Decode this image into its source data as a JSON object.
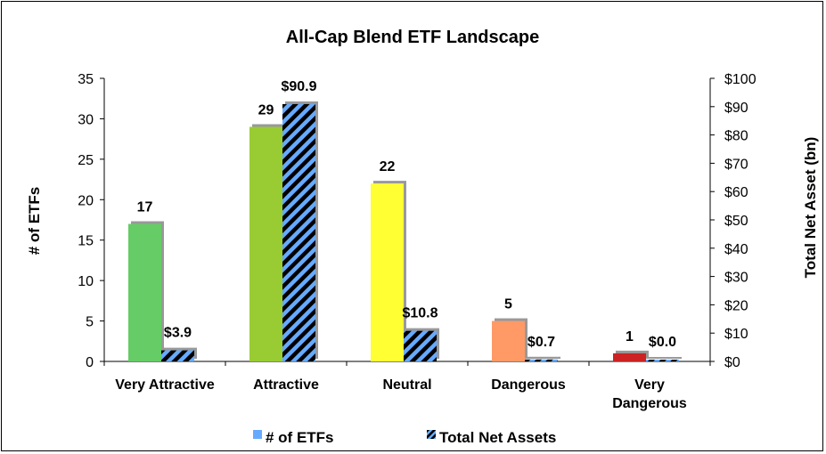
{
  "chart_data": {
    "type": "bar",
    "title": "All-Cap Blend ETF Landscape",
    "categories": [
      "Very Attractive",
      "Attractive",
      "Neutral",
      "Dangerous",
      "Very Dangerous"
    ],
    "series": [
      {
        "name": "# of ETFs",
        "axis": "left",
        "values": [
          17,
          29,
          22,
          5,
          1
        ],
        "labels": [
          "17",
          "29",
          "22",
          "5",
          "1"
        ],
        "colors": [
          "#66cc66",
          "#99cc33",
          "#ffff33",
          "#ff9966",
          "#cc2222"
        ],
        "legend_color": "#66aaff"
      },
      {
        "name": "Total Net Assets",
        "axis": "right",
        "values": [
          3.9,
          90.9,
          10.8,
          0.7,
          0.0
        ],
        "labels": [
          "$3.9",
          "$90.9",
          "$10.8",
          "$0.7",
          "$0.0"
        ],
        "pattern": "diagonal-stripes",
        "stripe_colors": [
          "#66aaff",
          "#000000"
        ]
      }
    ],
    "ylabel": "# of ETFs",
    "ylim": [
      0,
      35
    ],
    "yticks": [
      0,
      5,
      10,
      15,
      20,
      25,
      30,
      35
    ],
    "ylabel_right": "Total Net Asset (bn)",
    "ylim_right": [
      0,
      100
    ],
    "yticks_right": [
      "$0",
      "$10",
      "$20",
      "$30",
      "$40",
      "$50",
      "$60",
      "$70",
      "$80",
      "$90",
      "$100"
    ],
    "legend_position": "bottom",
    "grid": false
  }
}
